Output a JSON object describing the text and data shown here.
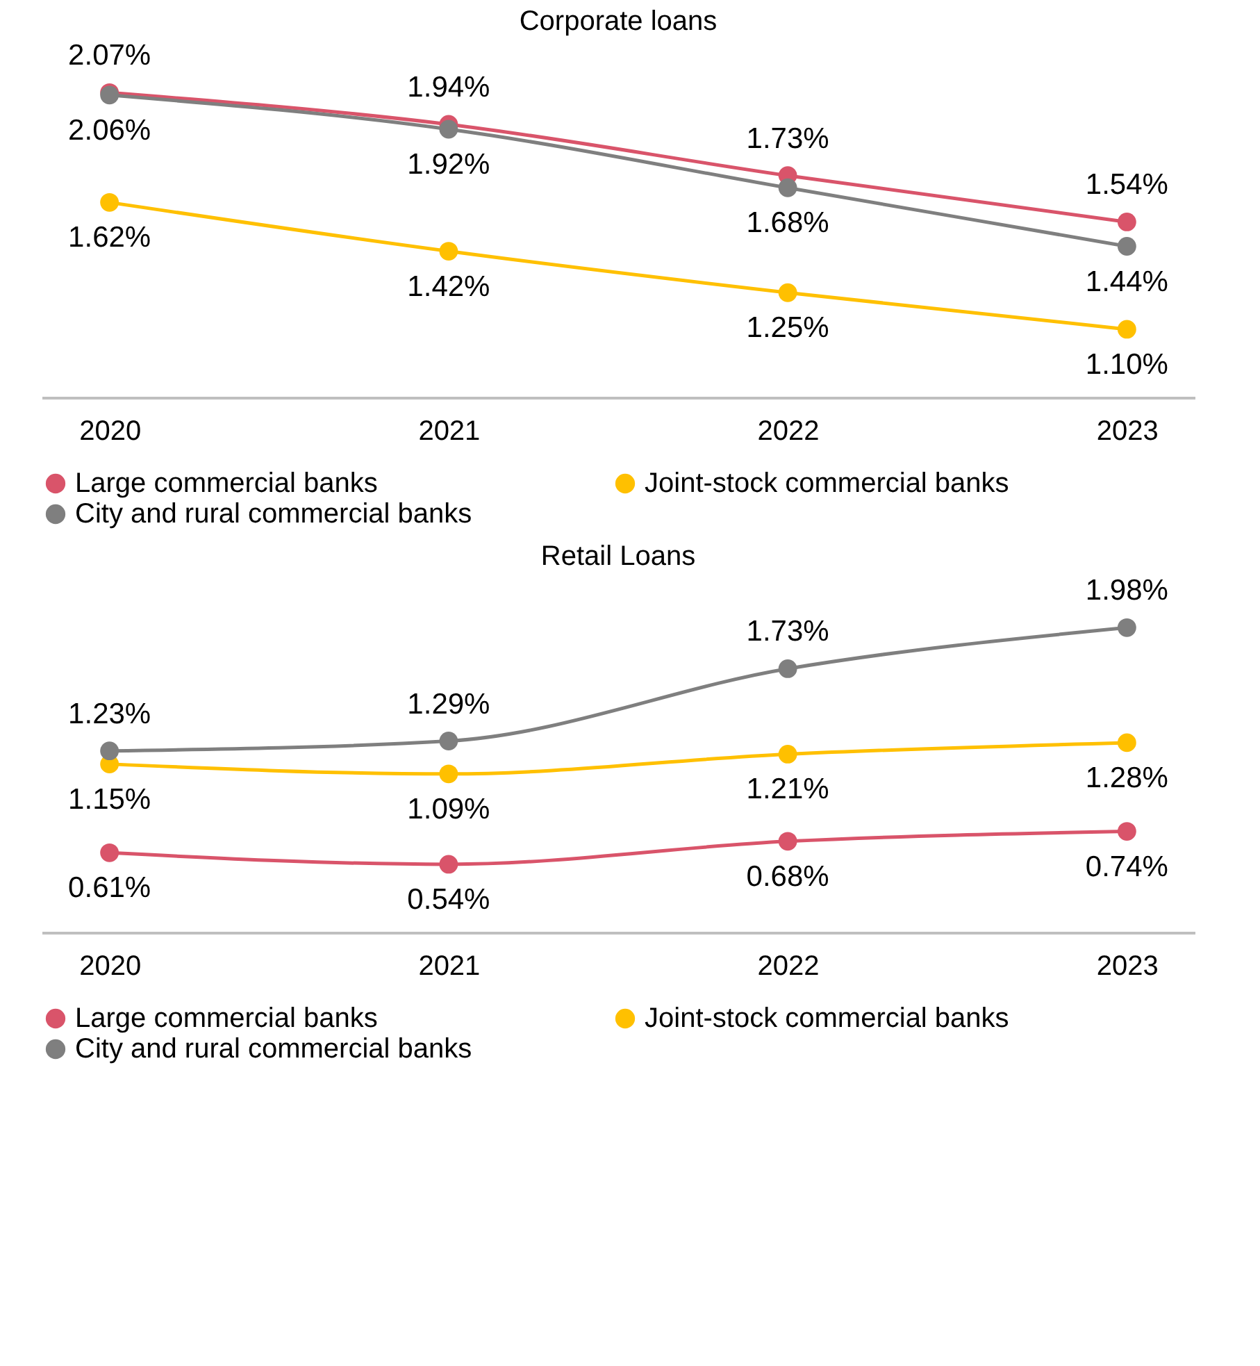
{
  "chart_data": [
    {
      "type": "line",
      "title": "Corporate loans",
      "categories": [
        "2020",
        "2021",
        "2022",
        "2023"
      ],
      "legend": "bottom",
      "marker": "circle",
      "series": [
        {
          "name": "Large commercial banks",
          "color": "#d9546a",
          "values": [
            2.07,
            1.94,
            1.73,
            1.54
          ],
          "value_labels": [
            "2.07%",
            "1.94%",
            "1.73%",
            "1.54%"
          ]
        },
        {
          "name": "Joint-stock commercial banks",
          "color": "#ffc000",
          "values": [
            1.62,
            1.42,
            1.25,
            1.1
          ],
          "value_labels": [
            "1.62%",
            "1.42%",
            "1.25%",
            "1.10%"
          ]
        },
        {
          "name": "City and rural commercial banks",
          "color": "#7f7f7f",
          "values": [
            2.06,
            1.92,
            1.68,
            1.44
          ],
          "value_labels": [
            "2.06%",
            "1.92%",
            "1.68%",
            "1.44%"
          ]
        }
      ]
    },
    {
      "type": "line",
      "title": "Retail Loans",
      "categories": [
        "2020",
        "2021",
        "2022",
        "2023"
      ],
      "legend": "bottom",
      "marker": "circle",
      "series": [
        {
          "name": "Large commercial banks",
          "color": "#d9546a",
          "values": [
            0.61,
            0.54,
            0.68,
            0.74
          ],
          "value_labels": [
            "0.61%",
            "0.54%",
            "0.68%",
            "0.74%"
          ]
        },
        {
          "name": "Joint-stock commercial banks",
          "color": "#ffc000",
          "values": [
            1.15,
            1.09,
            1.21,
            1.28
          ],
          "value_labels": [
            "1.15%",
            "1.09%",
            "1.21%",
            "1.28%"
          ]
        },
        {
          "name": "City and rural commercial banks",
          "color": "#7f7f7f",
          "values": [
            1.23,
            1.29,
            1.73,
            1.98
          ],
          "value_labels": [
            "1.23%",
            "1.29%",
            "1.73%",
            "1.98%"
          ]
        }
      ]
    }
  ]
}
